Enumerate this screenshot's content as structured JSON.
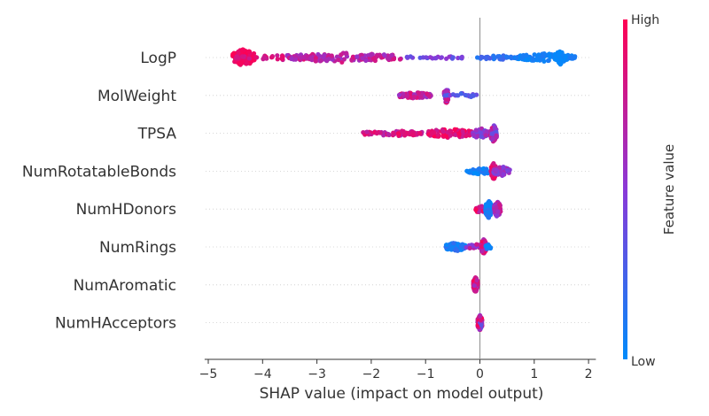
{
  "chart_data": {
    "type": "scatter",
    "subtype": "shap-beeswarm",
    "title": "",
    "xlabel": "SHAP value (impact on model output)",
    "ylabel": "",
    "xlim": [
      -5.1,
      2.2
    ],
    "xticks": [
      -5,
      -4,
      -3,
      -2,
      -1,
      0,
      1,
      2
    ],
    "xtick_labels": [
      "−5",
      "−4",
      "−3",
      "−2",
      "−1",
      "0",
      "1",
      "2"
    ],
    "zero_line": true,
    "grid": false,
    "colorbar": {
      "label": "Feature value",
      "high_label": "High",
      "low_label": "Low",
      "low_color": "#008bfb",
      "mid_color": "#8a39d8",
      "high_color": "#ff0052"
    },
    "features": [
      {
        "name": "LogP",
        "clusters": [
          {
            "c": -4.35,
            "w": 0.2,
            "n": 120,
            "f": [
              0.88,
              1.0
            ],
            "spread": 1.0
          },
          {
            "c": -3.6,
            "w": 0.9,
            "n": 50,
            "f": [
              0.75,
              0.95
            ],
            "spread": 0.3
          },
          {
            "c": -2.5,
            "w": 1.05,
            "n": 130,
            "f": [
              0.55,
              0.85
            ],
            "spread": 0.55
          },
          {
            "c": -0.85,
            "w": 0.55,
            "n": 25,
            "f": [
              0.3,
              0.55
            ],
            "spread": 0.2
          },
          {
            "c": 0.35,
            "w": 0.4,
            "n": 40,
            "f": [
              0.1,
              0.3
            ],
            "spread": 0.25
          },
          {
            "c": 1.2,
            "w": 0.55,
            "n": 110,
            "f": [
              0.0,
              0.12
            ],
            "spread": 0.45
          },
          {
            "c": 1.48,
            "w": 0.1,
            "n": 30,
            "f": [
              0.0,
              0.06
            ],
            "spread": 0.8
          }
        ]
      },
      {
        "name": "MolWeight",
        "clusters": [
          {
            "c": -1.2,
            "w": 0.3,
            "n": 80,
            "f": [
              0.55,
              0.9
            ],
            "spread": 0.35
          },
          {
            "c": -0.62,
            "w": 0.04,
            "n": 35,
            "f": [
              0.4,
              0.9
            ],
            "spread": 1.0
          },
          {
            "c": -0.35,
            "w": 0.3,
            "n": 20,
            "f": [
              0.2,
              0.5
            ],
            "spread": 0.25
          }
        ]
      },
      {
        "name": "TPSA",
        "clusters": [
          {
            "c": -1.55,
            "w": 0.6,
            "n": 70,
            "f": [
              0.65,
              0.95
            ],
            "spread": 0.3
          },
          {
            "c": -0.55,
            "w": 0.4,
            "n": 90,
            "f": [
              0.75,
              1.0
            ],
            "spread": 0.55
          },
          {
            "c": 0.0,
            "w": 0.15,
            "n": 40,
            "f": [
              0.35,
              0.7
            ],
            "spread": 0.6
          },
          {
            "c": 0.25,
            "w": 0.06,
            "n": 70,
            "f": [
              0.3,
              0.85
            ],
            "spread": 1.0
          }
        ]
      },
      {
        "name": "NumRotatableBonds",
        "clusters": [
          {
            "c": 0.0,
            "w": 0.25,
            "n": 45,
            "f": [
              0.0,
              0.15
            ],
            "spread": 0.35
          },
          {
            "c": 0.25,
            "w": 0.05,
            "n": 50,
            "f": [
              0.75,
              1.0
            ],
            "spread": 1.0
          },
          {
            "c": 0.4,
            "w": 0.15,
            "n": 60,
            "f": [
              0.4,
              0.7
            ],
            "spread": 0.55
          }
        ]
      },
      {
        "name": "NumHDonors",
        "clusters": [
          {
            "c": 0.0,
            "w": 0.08,
            "n": 25,
            "f": [
              0.6,
              1.0
            ],
            "spread": 0.5
          },
          {
            "c": 0.16,
            "w": 0.06,
            "n": 90,
            "f": [
              0.0,
              0.15
            ],
            "spread": 1.0
          },
          {
            "c": 0.32,
            "w": 0.06,
            "n": 60,
            "f": [
              0.5,
              0.8
            ],
            "spread": 0.9
          }
        ]
      },
      {
        "name": "NumRings",
        "clusters": [
          {
            "c": -0.45,
            "w": 0.18,
            "n": 70,
            "f": [
              0.0,
              0.2
            ],
            "spread": 0.5
          },
          {
            "c": -0.05,
            "w": 0.2,
            "n": 40,
            "f": [
              0.4,
              0.8
            ],
            "spread": 0.35
          },
          {
            "c": 0.07,
            "w": 0.04,
            "n": 60,
            "f": [
              0.6,
              1.0
            ],
            "spread": 1.0
          },
          {
            "c": 0.15,
            "w": 0.05,
            "n": 10,
            "f": [
              0.0,
              0.15
            ],
            "spread": 0.3
          }
        ]
      },
      {
        "name": "NumAromatic",
        "clusters": [
          {
            "c": -0.08,
            "w": 0.04,
            "n": 110,
            "f": [
              0.55,
              1.0
            ],
            "spread": 0.9
          }
        ]
      },
      {
        "name": "NumHAcceptors",
        "clusters": [
          {
            "c": 0.0,
            "w": 0.04,
            "n": 110,
            "f": [
              0.3,
              1.0
            ],
            "spread": 0.9
          }
        ]
      }
    ]
  }
}
